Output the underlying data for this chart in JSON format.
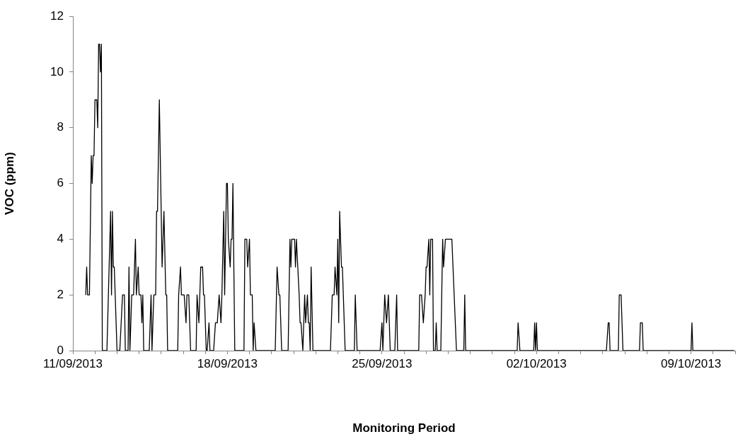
{
  "chart_data": {
    "type": "line",
    "xlabel": "Monitoring Period",
    "ylabel": "VOC (ppm)",
    "x": [
      "2013-09-11T14:00",
      "2013-09-11T15:00",
      "2013-09-11T16:00",
      "2013-09-11T18:00",
      "2013-09-11T20:00",
      "2013-09-11T21:00",
      "2013-09-11T22:00",
      "2013-09-11T23:00",
      "2013-09-12T00:00",
      "2013-09-12T02:00",
      "2013-09-12T03:00",
      "2013-09-12T04:00",
      "2013-09-12T05:00",
      "2013-09-12T06:00",
      "2013-09-12T07:00",
      "2013-09-12T08:00",
      "2013-09-12T13:00",
      "2013-09-12T17:00",
      "2013-09-12T18:00",
      "2013-09-12T19:00",
      "2013-09-12T20:00",
      "2013-09-12T21:00",
      "2013-09-13T00:00",
      "2013-09-13T03:00",
      "2013-09-13T06:00",
      "2013-09-13T08:00",
      "2013-09-13T09:00",
      "2013-09-13T12:00",
      "2013-09-13T13:00",
      "2013-09-13T14:00",
      "2013-09-13T16:00",
      "2013-09-13T18:00",
      "2013-09-13T20:00",
      "2013-09-13T21:00",
      "2013-09-13T23:00",
      "2013-09-14T00:00",
      "2013-09-14T02:00",
      "2013-09-14T03:00",
      "2013-09-14T04:00",
      "2013-09-14T05:00",
      "2013-09-14T11:00",
      "2013-09-14T13:00",
      "2013-09-14T14:00",
      "2013-09-14T16:00",
      "2013-09-14T18:00",
      "2013-09-14T19:00",
      "2013-09-14T20:00",
      "2013-09-14T22:00",
      "2013-09-15T01:00",
      "2013-09-15T03:00",
      "2013-09-15T05:00",
      "2013-09-15T06:00",
      "2013-09-15T07:00",
      "2013-09-15T18:00",
      "2013-09-15T19:00",
      "2013-09-15T21:00",
      "2013-09-15T22:00",
      "2013-09-16T01:00",
      "2013-09-16T03:00",
      "2013-09-16T04:00",
      "2013-09-16T06:00",
      "2013-09-16T08:00",
      "2013-09-16T14:00",
      "2013-09-16T15:00",
      "2013-09-16T17:00",
      "2013-09-16T18:00",
      "2013-09-16T19:00",
      "2013-09-16T21:00",
      "2013-09-16T22:00",
      "2013-09-16T23:00",
      "2013-09-17T01:00",
      "2013-09-17T02:00",
      "2013-09-17T04:00",
      "2013-09-17T05:00",
      "2013-09-17T09:00",
      "2013-09-17T11:00",
      "2013-09-17T13:00",
      "2013-09-17T15:00",
      "2013-09-17T17:00",
      "2013-09-17T18:00",
      "2013-09-17T20:00",
      "2013-09-17T21:00",
      "2013-09-17T23:00",
      "2013-09-18T00:00",
      "2013-09-18T01:00",
      "2013-09-18T03:00",
      "2013-09-18T04:00",
      "2013-09-18T05:00",
      "2013-09-18T06:00",
      "2013-09-18T08:00",
      "2013-09-18T18:00",
      "2013-09-18T19:00",
      "2013-09-18T21:00",
      "2013-09-18T22:00",
      "2013-09-19T00:00",
      "2013-09-19T01:00",
      "2013-09-19T03:00",
      "2013-09-19T04:00",
      "2013-09-19T05:00",
      "2013-09-19T07:00",
      "2013-09-20T04:00",
      "2013-09-20T06:00",
      "2013-09-20T08:00",
      "2013-09-20T09:00",
      "2013-09-20T11:00",
      "2013-09-20T18:00",
      "2013-09-20T20:00",
      "2013-09-20T21:00",
      "2013-09-20T22:00",
      "2013-09-21T01:00",
      "2013-09-21T02:00",
      "2013-09-21T03:00",
      "2013-09-21T06:00",
      "2013-09-21T07:00",
      "2013-09-21T08:00",
      "2013-09-21T10:00",
      "2013-09-21T12:00",
      "2013-09-21T13:00",
      "2013-09-21T15:00",
      "2013-09-21T16:00",
      "2013-09-21T17:00",
      "2013-09-21T18:00",
      "2013-09-21T19:00",
      "2013-09-21T21:00",
      "2013-09-22T16:00",
      "2013-09-22T18:00",
      "2013-09-22T20:00",
      "2013-09-22T21:00",
      "2013-09-22T23:00",
      "2013-09-23T00:00",
      "2013-09-23T01:00",
      "2013-09-23T02:00",
      "2013-09-23T04:00",
      "2013-09-23T05:00",
      "2013-09-23T06:00",
      "2013-09-23T08:00",
      "2013-09-23T18:00",
      "2013-09-23T19:00",
      "2013-09-23T21:00",
      "2013-09-24T22:00",
      "2013-09-25T00:00",
      "2013-09-25T01:00",
      "2013-09-25T03:00",
      "2013-09-25T05:00",
      "2013-09-25T07:00",
      "2013-09-25T09:00",
      "2013-09-25T14:00",
      "2013-09-25T16:00",
      "2013-09-25T17:00",
      "2013-09-26T16:00",
      "2013-09-26T17:00",
      "2013-09-26T19:00",
      "2013-09-26T21:00",
      "2013-09-26T23:00",
      "2013-09-27T00:00",
      "2013-09-27T01:00",
      "2013-09-27T03:00",
      "2013-09-27T04:00",
      "2013-09-27T05:00",
      "2013-09-27T07:00",
      "2013-09-27T08:00",
      "2013-09-27T10:00",
      "2013-09-27T11:00",
      "2013-09-27T12:00",
      "2013-09-27T16:00",
      "2013-09-27T18:00",
      "2013-09-27T19:00",
      "2013-09-27T21:00",
      "2013-09-28T04:00",
      "2013-09-28T09:00",
      "2013-09-28T17:00",
      "2013-09-28T18:00",
      "2013-09-28T19:00",
      "2013-10-01T03:00",
      "2013-10-01T04:00",
      "2013-10-01T06:00",
      "2013-10-01T21:00",
      "2013-10-01T22:00",
      "2013-10-01T23:00",
      "2013-10-02T00:00",
      "2013-10-02T01:00",
      "2013-10-05T04:00",
      "2013-10-05T06:00",
      "2013-10-05T07:00",
      "2013-10-05T08:00",
      "2013-10-05T17:00",
      "2013-10-05T18:00",
      "2013-10-05T20:00",
      "2013-10-05T22:00",
      "2013-10-06T16:00",
      "2013-10-06T17:00",
      "2013-10-06T19:00",
      "2013-10-06T20:00",
      "2013-10-09T00:00",
      "2013-10-09T01:00",
      "2013-10-09T02:00",
      "2013-10-10T23:00"
    ],
    "series": [
      {
        "color": "#000000",
        "values": [
          2,
          3,
          2,
          2,
          7,
          6,
          7,
          7,
          9,
          9,
          8,
          11,
          11,
          10,
          11,
          0,
          0,
          5,
          2,
          5,
          3,
          3,
          0,
          0,
          2,
          2,
          0,
          0,
          3,
          0,
          2,
          2,
          4,
          2,
          3,
          2,
          2,
          1,
          2,
          0,
          0,
          2,
          0,
          2,
          2,
          5,
          5,
          9,
          3,
          5,
          2,
          2,
          0,
          0,
          2,
          3,
          2,
          2,
          1,
          2,
          2,
          0,
          0,
          2,
          1,
          2,
          3,
          3,
          2,
          2,
          0,
          0,
          1,
          0,
          0,
          1,
          1,
          2,
          1,
          2,
          5,
          2,
          6,
          6,
          4,
          3,
          4,
          4,
          6,
          0,
          0,
          4,
          4,
          3,
          4,
          2,
          2,
          0,
          1,
          0,
          0,
          3,
          2,
          2,
          0,
          0,
          4,
          3,
          4,
          4,
          3,
          4,
          2,
          1,
          1,
          0,
          2,
          1,
          2,
          1,
          1,
          0,
          3,
          0,
          0,
          2,
          2,
          3,
          2,
          4,
          1,
          5,
          3,
          3,
          2,
          0,
          0,
          2,
          0,
          0,
          1,
          0,
          2,
          1,
          2,
          0,
          0,
          2,
          0,
          0,
          2,
          2,
          1,
          2,
          3,
          3,
          4,
          2,
          4,
          4,
          0,
          0,
          1,
          0,
          0,
          4,
          3,
          4,
          4,
          0,
          0,
          2,
          0,
          0,
          1,
          0,
          0,
          1,
          0,
          1,
          0,
          0,
          1,
          1,
          0,
          0,
          2,
          2,
          0,
          0,
          1,
          1,
          0,
          0,
          1,
          0,
          0
        ]
      }
    ],
    "xlim": [
      "2013-09-11",
      "2013-10-11"
    ],
    "xticks": [
      {
        "value": "2013-09-11",
        "label": "11/09/2013"
      },
      {
        "value": "2013-09-12",
        "label": null
      },
      {
        "value": "2013-09-13",
        "label": null
      },
      {
        "value": "2013-09-14",
        "label": null
      },
      {
        "value": "2013-09-15",
        "label": null
      },
      {
        "value": "2013-09-16",
        "label": null
      },
      {
        "value": "2013-09-17",
        "label": null
      },
      {
        "value": "2013-09-18",
        "label": "18/09/2013"
      },
      {
        "value": "2013-09-19",
        "label": null
      },
      {
        "value": "2013-09-20",
        "label": null
      },
      {
        "value": "2013-09-21",
        "label": null
      },
      {
        "value": "2013-09-22",
        "label": null
      },
      {
        "value": "2013-09-23",
        "label": null
      },
      {
        "value": "2013-09-24",
        "label": null
      },
      {
        "value": "2013-09-25",
        "label": "25/09/2013"
      },
      {
        "value": "2013-09-26",
        "label": null
      },
      {
        "value": "2013-09-27",
        "label": null
      },
      {
        "value": "2013-09-28",
        "label": null
      },
      {
        "value": "2013-09-29",
        "label": null
      },
      {
        "value": "2013-09-30",
        "label": null
      },
      {
        "value": "2013-10-01",
        "label": null
      },
      {
        "value": "2013-10-02",
        "label": "02/10/2013"
      },
      {
        "value": "2013-10-03",
        "label": null
      },
      {
        "value": "2013-10-04",
        "label": null
      },
      {
        "value": "2013-10-05",
        "label": null
      },
      {
        "value": "2013-10-06",
        "label": null
      },
      {
        "value": "2013-10-07",
        "label": null
      },
      {
        "value": "2013-10-08",
        "label": null
      },
      {
        "value": "2013-10-09",
        "label": "09/10/2013"
      },
      {
        "value": "2013-10-10",
        "label": null
      },
      {
        "value": "2013-10-11",
        "label": null
      }
    ],
    "ylim": [
      0,
      12
    ],
    "yticks": [
      0,
      2,
      4,
      6,
      8,
      10,
      12
    ],
    "grid": false,
    "legend": false,
    "marker": "none",
    "line_style": "solid"
  }
}
